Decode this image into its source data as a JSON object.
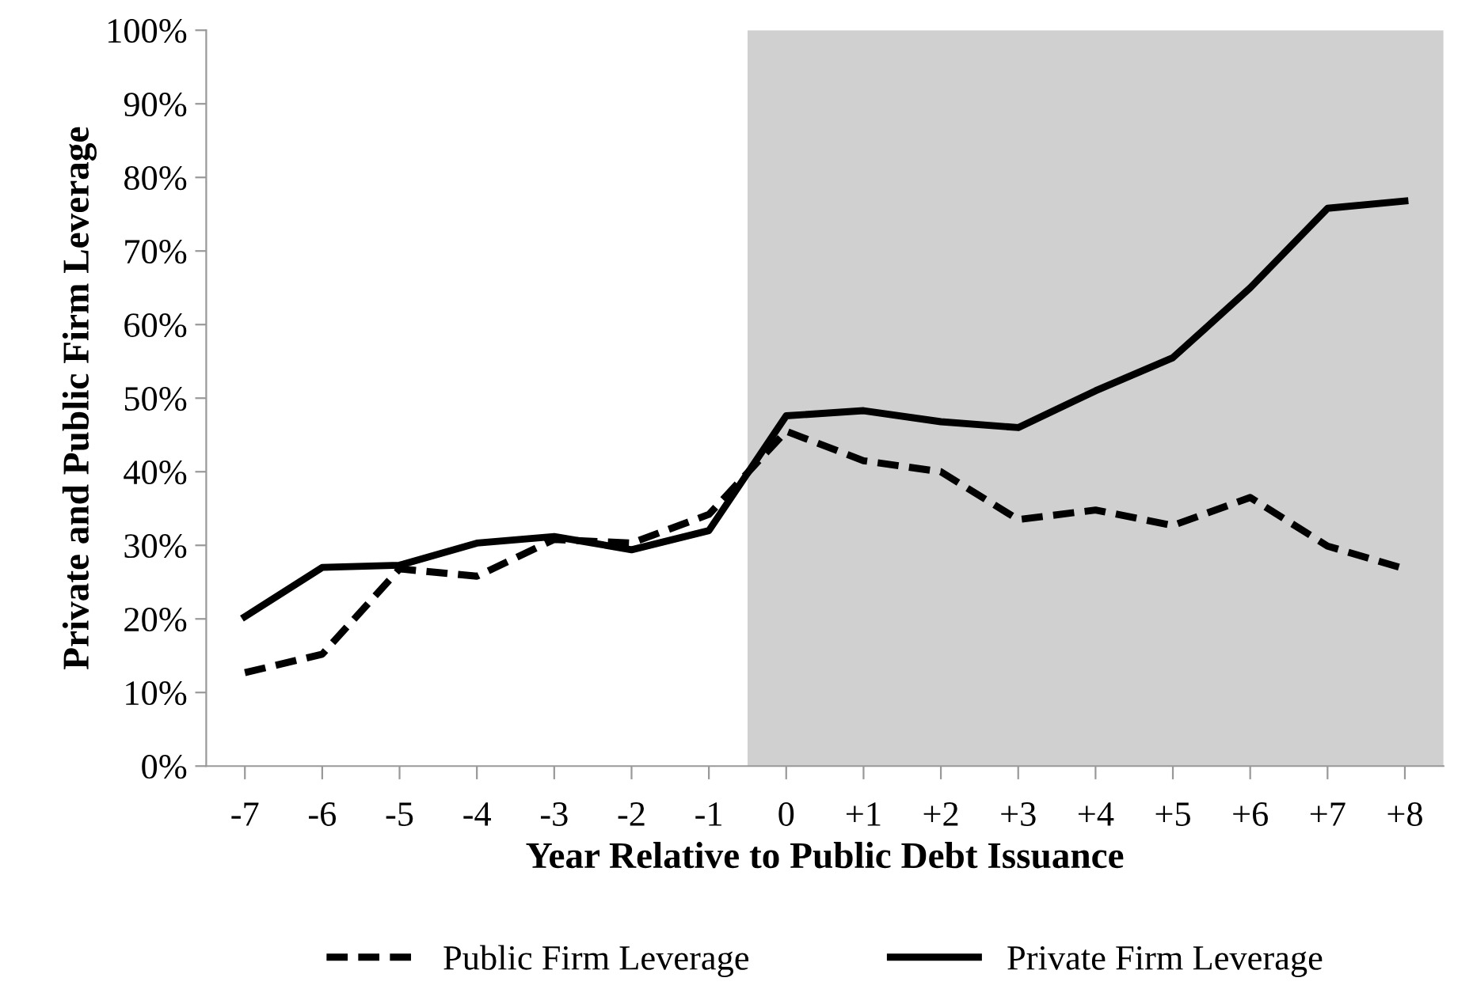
{
  "chart_data": {
    "type": "line",
    "xlabel": "Year Relative to Public Debt Issuance",
    "ylabel": "Private and Public Firm Leverage",
    "x": [
      -7,
      -6,
      -5,
      -4,
      -3,
      -2,
      -1,
      0,
      1,
      2,
      3,
      4,
      5,
      6,
      7,
      8
    ],
    "series": [
      {
        "name": "Public Firm Leverage",
        "color": "#000000",
        "line_style": "dashed",
        "values": [
          12.7,
          15.2,
          26.8,
          25.8,
          30.8,
          30.3,
          34.2,
          45.5,
          41.5,
          40.0,
          33.5,
          34.8,
          32.7,
          36.5,
          29.9,
          26.8
        ]
      },
      {
        "name": "Private Firm Leverage",
        "color": "#000000",
        "line_style": "solid",
        "values": [
          20.3,
          27.0,
          27.3,
          30.3,
          31.2,
          29.4,
          32.0,
          47.6,
          48.3,
          46.8,
          46.0,
          51.0,
          55.5,
          65.0,
          75.8,
          76.8
        ]
      }
    ],
    "xlim": [
      -7.5,
      8.5
    ],
    "xticks": [
      -7,
      -6,
      -5,
      -4,
      -3,
      -2,
      -1,
      0,
      {
        "value": 1,
        "label": "+1"
      },
      {
        "value": 2,
        "label": "+2"
      },
      {
        "value": 3,
        "label": "+3"
      },
      {
        "value": 4,
        "label": "+4"
      },
      {
        "value": 5,
        "label": "+5"
      },
      {
        "value": 6,
        "label": "+6"
      },
      {
        "value": 7,
        "label": "+7"
      },
      {
        "value": 8,
        "label": "+8"
      }
    ],
    "ylim": [
      0,
      100
    ],
    "yticks": [
      {
        "value": 0,
        "label": "0%"
      },
      {
        "value": 10,
        "label": "10%"
      },
      {
        "value": 20,
        "label": "20%"
      },
      {
        "value": 30,
        "label": "30%"
      },
      {
        "value": 40,
        "label": "40%"
      },
      {
        "value": 50,
        "label": "50%"
      },
      {
        "value": 60,
        "label": "60%"
      },
      {
        "value": 70,
        "label": "70%"
      },
      {
        "value": 80,
        "label": "80%"
      },
      {
        "value": 90,
        "label": "90%"
      },
      {
        "value": 100,
        "label": "100%"
      }
    ],
    "bands": [
      {
        "axis": "x",
        "from": -0.5,
        "to": 8.5,
        "color": "#d0d0d0"
      }
    ],
    "grid": false,
    "legend": "bottom",
    "marker": "none"
  }
}
